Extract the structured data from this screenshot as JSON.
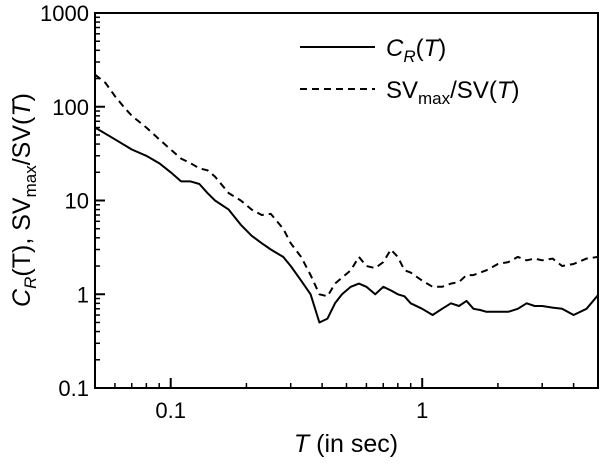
{
  "chart_data": {
    "type": "line",
    "xscale": "log",
    "yscale": "log",
    "xlim": [
      0.05,
      5
    ],
    "ylim": [
      0.1,
      1000
    ],
    "xticks": [
      {
        "value": 0.1,
        "label": "0.1"
      },
      {
        "value": 1,
        "label": "1"
      }
    ],
    "yticks": [
      {
        "value": 0.1,
        "label": "0.1"
      },
      {
        "value": 1,
        "label": "1"
      },
      {
        "value": 10,
        "label": "10"
      },
      {
        "value": 100,
        "label": "100"
      },
      {
        "value": 1000,
        "label": "1000"
      }
    ],
    "xlabel": {
      "italic": "T",
      "rest": " (in sec)"
    },
    "ylabel": {
      "c": "C",
      "c_sub": "R",
      "c_arg": "(T)",
      "sep": ", ",
      "sv": "SV",
      "sv_sub": "max",
      "slash": "/SV(",
      "t": "T",
      "close": ")"
    },
    "grid": false,
    "legend_position": "top-right",
    "series": [
      {
        "legend": {
          "c": "C",
          "c_sub": "R",
          "arg_open": "(",
          "t": "T",
          "arg_close": ")"
        },
        "style": "solid",
        "color": "#000000",
        "x": [
          0.05,
          0.06,
          0.07,
          0.08,
          0.09,
          0.1,
          0.11,
          0.12,
          0.13,
          0.14,
          0.15,
          0.17,
          0.19,
          0.21,
          0.23,
          0.25,
          0.28,
          0.3,
          0.33,
          0.36,
          0.39,
          0.42,
          0.45,
          0.48,
          0.52,
          0.56,
          0.6,
          0.65,
          0.7,
          0.75,
          0.8,
          0.85,
          0.9,
          1.0,
          1.1,
          1.2,
          1.3,
          1.4,
          1.5,
          1.6,
          1.7,
          1.8,
          2.0,
          2.2,
          2.4,
          2.6,
          2.8,
          3.0,
          3.3,
          3.6,
          4.0,
          4.5,
          5.0
        ],
        "y": [
          60,
          45,
          35,
          30,
          25,
          20,
          16,
          16,
          15,
          12,
          10,
          8,
          5.5,
          4.2,
          3.5,
          3.0,
          2.5,
          2.0,
          1.4,
          1.0,
          0.5,
          0.55,
          0.8,
          1.0,
          1.2,
          1.3,
          1.2,
          1.0,
          1.2,
          1.1,
          1.0,
          0.95,
          0.8,
          0.7,
          0.6,
          0.7,
          0.8,
          0.75,
          0.85,
          0.7,
          0.68,
          0.65,
          0.65,
          0.65,
          0.7,
          0.8,
          0.75,
          0.75,
          0.72,
          0.7,
          0.6,
          0.7,
          0.98
        ]
      },
      {
        "legend": {
          "sv": "SV",
          "sv_sub": "max",
          "slash": "/SV(",
          "t": "T",
          "close": ")"
        },
        "style": "dashed",
        "color": "#000000",
        "x": [
          0.05,
          0.055,
          0.06,
          0.065,
          0.07,
          0.08,
          0.09,
          0.1,
          0.11,
          0.12,
          0.13,
          0.14,
          0.15,
          0.17,
          0.19,
          0.21,
          0.23,
          0.25,
          0.28,
          0.3,
          0.33,
          0.36,
          0.39,
          0.42,
          0.45,
          0.48,
          0.52,
          0.56,
          0.6,
          0.65,
          0.7,
          0.75,
          0.8,
          0.85,
          0.9,
          1.0,
          1.1,
          1.2,
          1.3,
          1.4,
          1.5,
          1.6,
          1.8,
          2.0,
          2.2,
          2.4,
          2.6,
          2.8,
          3.0,
          3.3,
          3.6,
          4.0,
          4.5,
          5.0
        ],
        "y": [
          220,
          180,
          130,
          100,
          80,
          60,
          45,
          35,
          28,
          25,
          22,
          21,
          18,
          12,
          10,
          8,
          7,
          7.2,
          5.0,
          3.5,
          2.5,
          1.6,
          1.0,
          0.95,
          1.3,
          1.5,
          1.8,
          2.5,
          2.0,
          1.9,
          2.2,
          3.0,
          2.5,
          1.8,
          1.7,
          1.4,
          1.2,
          1.2,
          1.3,
          1.35,
          1.6,
          1.6,
          1.8,
          2.1,
          2.2,
          2.5,
          2.3,
          2.4,
          2.3,
          2.4,
          2.0,
          2.1,
          2.4,
          2.5
        ]
      }
    ]
  }
}
